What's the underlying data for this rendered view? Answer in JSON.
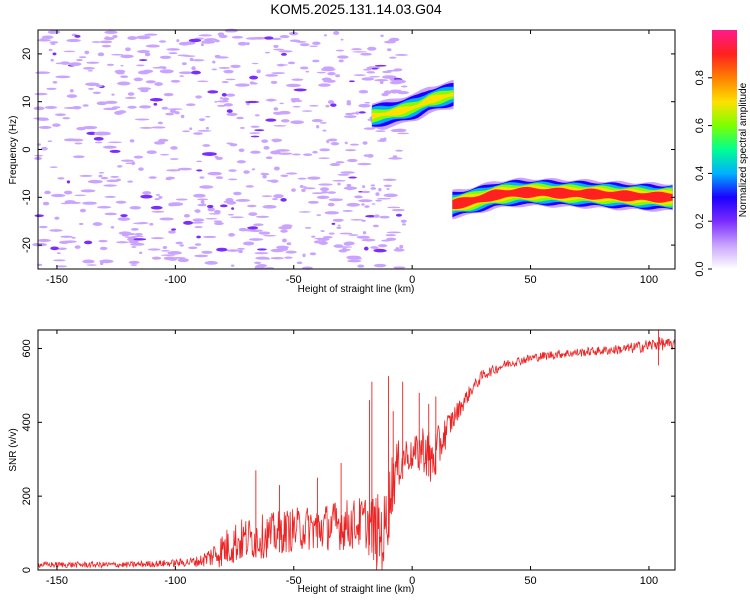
{
  "title": "KOM5.2025.131.14.03.G04",
  "colors": {
    "snr_line": "#ee2222",
    "colormap": [
      "#ffffff",
      "#c9a3ff",
      "#7b2cff",
      "#1b00ff",
      "#00b0ff",
      "#00ff90",
      "#7cff00",
      "#ffe000",
      "#ff8000",
      "#ff2020",
      "#ff1a8c"
    ]
  },
  "chart_data": [
    {
      "type": "heatmap",
      "xlabel": "Height of straight line (km)",
      "ylabel": "Frequency (Hz)",
      "xlim": [
        -158,
        111
      ],
      "ylim": [
        -25,
        25
      ],
      "xticks": [
        -150,
        -100,
        -50,
        0,
        50,
        100
      ],
      "yticks": [
        20,
        10,
        0,
        -10,
        -20
      ],
      "xtick_labels": [
        "-150",
        "-100",
        "-50",
        "0",
        "50",
        "100"
      ],
      "ytick_labels": [
        "20",
        "10",
        "0",
        "-10",
        "-20"
      ],
      "colorbar": {
        "label": "Normalized spectral amplitude",
        "range": [
          0,
          1
        ],
        "ticks": [
          0.0,
          0.2,
          0.4,
          0.6,
          0.8
        ],
        "tick_labels": [
          "0.0",
          "0.2",
          "0.4",
          "0.6",
          "0.8"
        ]
      },
      "ridges": [
        {
          "name": "",
          "points": [
            [
              -17,
              7.0
            ],
            [
              -10,
              7.5
            ],
            [
              -3,
              8.3
            ],
            [
              2,
              9.0
            ],
            [
              7,
              10.3
            ],
            [
              12,
              10.9
            ],
            [
              18,
              11.6
            ]
          ],
          "peak_amplitude": 0.6
        },
        {
          "name": "",
          "points": [
            [
              17,
              -11.5
            ],
            [
              25,
              -10.8
            ],
            [
              35,
              -9.5
            ],
            [
              45,
              -9.0
            ],
            [
              55,
              -9.0
            ],
            [
              65,
              -9.2
            ],
            [
              75,
              -9.3
            ],
            [
              85,
              -9.6
            ],
            [
              95,
              -9.8
            ],
            [
              105,
              -10.0
            ],
            [
              111,
              -10.0
            ]
          ],
          "peak_amplitude": 0.9
        }
      ],
      "noise_region_xmax": -15
    },
    {
      "type": "line",
      "xlabel": "Height of straight line (km)",
      "ylabel": "SNR (v/v)",
      "xlim": [
        -158,
        111
      ],
      "ylim": [
        0,
        650
      ],
      "xticks": [
        -150,
        -100,
        -50,
        0,
        50,
        100
      ],
      "yticks": [
        0,
        200,
        400,
        600
      ],
      "xtick_labels": [
        "-150",
        "-100",
        "-50",
        "0",
        "50",
        "100"
      ],
      "ytick_labels": [
        "0",
        "200",
        "400",
        "600"
      ],
      "series": [
        {
          "name": "",
          "envelope": {
            "x": [
              -158,
              -140,
              -120,
              -100,
              -90,
              -85,
              -80,
              -75,
              -70,
              -65,
              -60,
              -55,
              -50,
              -45,
              -40,
              -35,
              -30,
              -25,
              -20,
              -15,
              -12,
              -8,
              -5,
              -2,
              0,
              3,
              5,
              8,
              10,
              15,
              20,
              25,
              30,
              40,
              50,
              60,
              70,
              80,
              90,
              100,
              105,
              111
            ],
            "y": [
              15,
              15,
              15,
              20,
              25,
              40,
              60,
              80,
              90,
              95,
              100,
              110,
              115,
              120,
              120,
              125,
              130,
              130,
              140,
              110,
              100,
              260,
              300,
              320,
              310,
              330,
              340,
              300,
              320,
              390,
              440,
              490,
              530,
              560,
              575,
              585,
              590,
              595,
              600,
              610,
              615,
              610
            ],
            "noise": [
              8,
              8,
              8,
              10,
              15,
              30,
              50,
              60,
              60,
              60,
              60,
              60,
              60,
              60,
              65,
              65,
              70,
              70,
              70,
              110,
              110,
              90,
              60,
              50,
              40,
              60,
              70,
              80,
              70,
              40,
              25,
              18,
              15,
              12,
              12,
              12,
              12,
              12,
              14,
              18,
              18,
              14
            ]
          },
          "spikes": [
            [
              -66,
              270
            ],
            [
              -56,
              230
            ],
            [
              -40,
              250
            ],
            [
              -30,
              290
            ],
            [
              -18,
              460
            ],
            [
              -17,
              510
            ],
            [
              -10,
              525
            ],
            [
              -8,
              430
            ],
            [
              -4,
              510
            ],
            [
              3,
              480
            ],
            [
              7,
              450
            ],
            [
              10,
              470
            ],
            [
              104,
              650
            ]
          ]
        }
      ]
    }
  ]
}
